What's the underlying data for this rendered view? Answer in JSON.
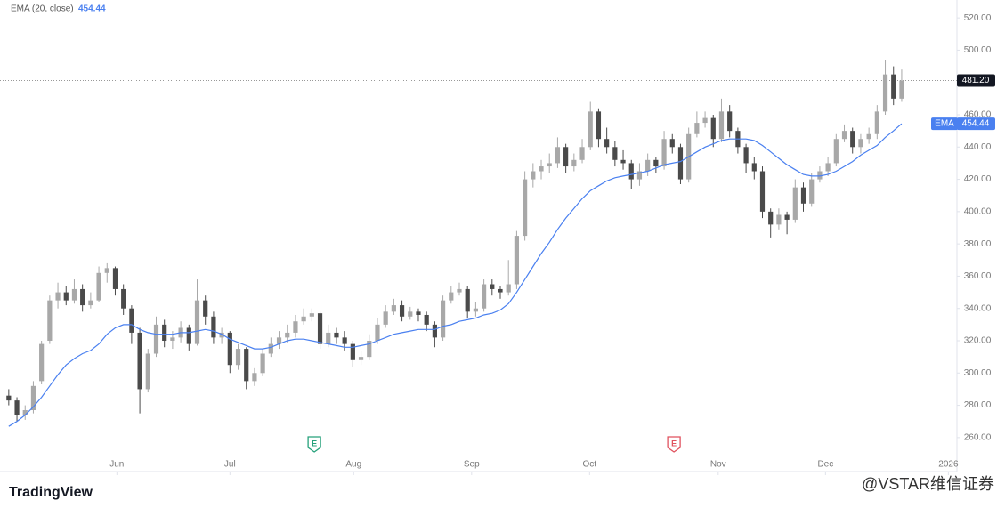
{
  "chart_data": {
    "type": "candlestick",
    "candles": {
      "up_color": "#a8a8a8",
      "down_color": "#4a4a4a",
      "values": [
        [
          286,
          290,
          280,
          283
        ],
        [
          283,
          285,
          270,
          274
        ],
        [
          274,
          280,
          271,
          277
        ],
        [
          277,
          295,
          275,
          292
        ],
        [
          295,
          320,
          293,
          318
        ],
        [
          320,
          348,
          318,
          345
        ],
        [
          345,
          356,
          340,
          350
        ],
        [
          350,
          354,
          342,
          345
        ],
        [
          345,
          358,
          343,
          352
        ],
        [
          352,
          355,
          338,
          342
        ],
        [
          342,
          350,
          340,
          345
        ],
        [
          345,
          366,
          344,
          362
        ],
        [
          362,
          368,
          356,
          365
        ],
        [
          365,
          366,
          348,
          352
        ],
        [
          352,
          355,
          336,
          340
        ],
        [
          340,
          342,
          318,
          325
        ],
        [
          325,
          328,
          275,
          290
        ],
        [
          290,
          315,
          288,
          312
        ],
        [
          312,
          335,
          310,
          330
        ],
        [
          330,
          333,
          316,
          320
        ],
        [
          320,
          326,
          315,
          322
        ],
        [
          322,
          332,
          319,
          328
        ],
        [
          328,
          330,
          314,
          318
        ],
        [
          318,
          358,
          317,
          345
        ],
        [
          345,
          348,
          330,
          335
        ],
        [
          335,
          338,
          318,
          322
        ],
        [
          322,
          328,
          318,
          325
        ],
        [
          325,
          326,
          300,
          305
        ],
        [
          305,
          318,
          302,
          315
        ],
        [
          315,
          316,
          290,
          295
        ],
        [
          295,
          303,
          292,
          300
        ],
        [
          300,
          315,
          298,
          312
        ],
        [
          312,
          322,
          310,
          318
        ],
        [
          318,
          326,
          315,
          322
        ],
        [
          322,
          330,
          319,
          325
        ],
        [
          325,
          336,
          322,
          332
        ],
        [
          332,
          340,
          330,
          335
        ],
        [
          335,
          340,
          332,
          337
        ],
        [
          337,
          338,
          315,
          318
        ],
        [
          318,
          330,
          316,
          325
        ],
        [
          325,
          328,
          318,
          322
        ],
        [
          322,
          326,
          314,
          318
        ],
        [
          318,
          320,
          304,
          308
        ],
        [
          308,
          314,
          305,
          310
        ],
        [
          310,
          324,
          308,
          320
        ],
        [
          320,
          334,
          318,
          330
        ],
        [
          330,
          342,
          328,
          338
        ],
        [
          338,
          346,
          336,
          342
        ],
        [
          342,
          345,
          332,
          335
        ],
        [
          335,
          341,
          333,
          338
        ],
        [
          338,
          340,
          332,
          336
        ],
        [
          336,
          338,
          326,
          330
        ],
        [
          330,
          332,
          316,
          322
        ],
        [
          322,
          348,
          320,
          345
        ],
        [
          345,
          354,
          343,
          350
        ],
        [
          350,
          356,
          348,
          352
        ],
        [
          352,
          354,
          334,
          338
        ],
        [
          338,
          344,
          335,
          340
        ],
        [
          340,
          358,
          338,
          355
        ],
        [
          355,
          358,
          348,
          352
        ],
        [
          352,
          354,
          346,
          350
        ],
        [
          350,
          370,
          348,
          355
        ],
        [
          355,
          388,
          352,
          385
        ],
        [
          385,
          425,
          382,
          420
        ],
        [
          420,
          430,
          415,
          425
        ],
        [
          425,
          432,
          420,
          428
        ],
        [
          428,
          436,
          424,
          430
        ],
        [
          430,
          446,
          427,
          440
        ],
        [
          440,
          442,
          424,
          428
        ],
        [
          428,
          436,
          425,
          432
        ],
        [
          432,
          445,
          430,
          440
        ],
        [
          440,
          468,
          438,
          462
        ],
        [
          462,
          464,
          440,
          445
        ],
        [
          445,
          452,
          436,
          440
        ],
        [
          440,
          444,
          428,
          432
        ],
        [
          432,
          438,
          426,
          430
        ],
        [
          430,
          432,
          414,
          420
        ],
        [
          420,
          430,
          416,
          425
        ],
        [
          425,
          436,
          422,
          432
        ],
        [
          432,
          434,
          424,
          428
        ],
        [
          428,
          450,
          426,
          445
        ],
        [
          445,
          448,
          436,
          440
        ],
        [
          440,
          442,
          417,
          420
        ],
        [
          420,
          452,
          418,
          448
        ],
        [
          448,
          462,
          446,
          455
        ],
        [
          455,
          462,
          452,
          458
        ],
        [
          458,
          460,
          440,
          445
        ],
        [
          445,
          470,
          443,
          462
        ],
        [
          462,
          466,
          446,
          450
        ],
        [
          450,
          452,
          436,
          440
        ],
        [
          440,
          442,
          424,
          430
        ],
        [
          430,
          434,
          420,
          425
        ],
        [
          425,
          428,
          396,
          400
        ],
        [
          400,
          402,
          384,
          392
        ],
        [
          392,
          402,
          389,
          398
        ],
        [
          398,
          400,
          386,
          395
        ],
        [
          395,
          420,
          393,
          415
        ],
        [
          415,
          418,
          400,
          405
        ],
        [
          405,
          424,
          403,
          420
        ],
        [
          420,
          428,
          418,
          425
        ],
        [
          425,
          434,
          422,
          430
        ],
        [
          430,
          448,
          428,
          445
        ],
        [
          445,
          454,
          443,
          450
        ],
        [
          450,
          452,
          436,
          440
        ],
        [
          440,
          448,
          436,
          445
        ],
        [
          445,
          452,
          442,
          448
        ],
        [
          448,
          466,
          445,
          462
        ],
        [
          462,
          494,
          460,
          485
        ],
        [
          485,
          490,
          466,
          470
        ],
        [
          470,
          488,
          468,
          481.2
        ]
      ]
    },
    "ema": {
      "name": "EMA (20, close)",
      "badge": "EMA",
      "color": "#4a80f0",
      "value_label": "454.44",
      "values": [
        267,
        270,
        274,
        279,
        285,
        292,
        299,
        305,
        309,
        312,
        314,
        318,
        324,
        328,
        330,
        330,
        327,
        325,
        324,
        324,
        324,
        325,
        325,
        326,
        327,
        326,
        324,
        321,
        319,
        317,
        315,
        315,
        316,
        318,
        320,
        321,
        321,
        320,
        319,
        318,
        317,
        316,
        316,
        317,
        318,
        320,
        322,
        324,
        325,
        326,
        327,
        327,
        327,
        329,
        330,
        332,
        333,
        334,
        336,
        337,
        339,
        343,
        350,
        358,
        366,
        374,
        381,
        389,
        396,
        402,
        408,
        413,
        416,
        419,
        421,
        422,
        423,
        424,
        425,
        427,
        429,
        430,
        431,
        434,
        437,
        440,
        442,
        444,
        445,
        445,
        445,
        444,
        441,
        437,
        433,
        429,
        426,
        423,
        422,
        422,
        423,
        425,
        428,
        431,
        435,
        438,
        441,
        446,
        450,
        454.44
      ]
    },
    "price_line": {
      "value": 481.2,
      "label": "481.20",
      "color": "#131722"
    },
    "events": [
      {
        "x": 37.3,
        "label": "E",
        "color": "#26a17b"
      },
      {
        "x": 81.2,
        "label": "E",
        "color": "#e0525e"
      }
    ],
    "xlim": [
      -0.2,
      115.2
    ],
    "xticks": [
      {
        "value": 13.2,
        "label": "Jun"
      },
      {
        "value": 27,
        "label": "Jul"
      },
      {
        "value": 42.1,
        "label": "Aug"
      },
      {
        "value": 56.5,
        "label": "Sep"
      },
      {
        "value": 70.9,
        "label": "Oct"
      },
      {
        "value": 86.6,
        "label": "Nov"
      },
      {
        "value": 99.7,
        "label": "Dec"
      },
      {
        "value": 114.7,
        "label": "2026"
      }
    ],
    "ylim": [
      250,
      530
    ],
    "yticks": [
      {
        "value": 260,
        "label": "260.00"
      },
      {
        "value": 280,
        "label": "280.00"
      },
      {
        "value": 300,
        "label": "300.00"
      },
      {
        "value": 320,
        "label": "320.00"
      },
      {
        "value": 340,
        "label": "340.00"
      },
      {
        "value": 360,
        "label": "360.00"
      },
      {
        "value": 380,
        "label": "380.00"
      },
      {
        "value": 400,
        "label": "400.00"
      },
      {
        "value": 420,
        "label": "420.00"
      },
      {
        "value": 440,
        "label": "440.00"
      },
      {
        "value": 460,
        "label": "460.00"
      },
      {
        "value": 480,
        "label": "480.00"
      },
      {
        "value": 500,
        "label": "500.00"
      },
      {
        "value": 520,
        "label": "520.00"
      }
    ]
  },
  "footer": {
    "brand": "TradingView",
    "watermark": "@VSTAR维信证券"
  }
}
